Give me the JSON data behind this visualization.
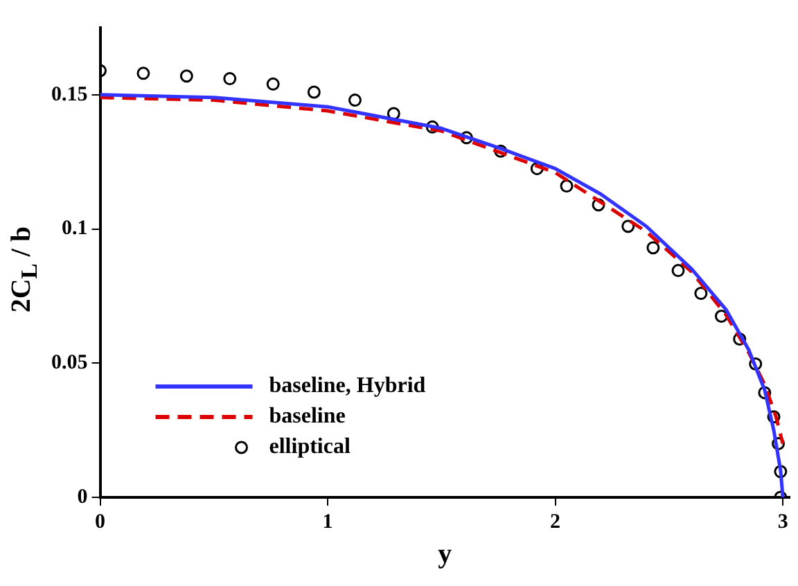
{
  "chart_data": {
    "type": "line",
    "xlabel": "y",
    "ylabel": "2C$_{L}$ / b",
    "xlim": [
      0,
      3.03
    ],
    "ylim": [
      0,
      0.175
    ],
    "xticks": [
      0,
      1,
      2,
      3
    ],
    "yticks": [
      0,
      0.05,
      0.1,
      0.15
    ],
    "grid": false,
    "legend": "bottom left",
    "series": [
      {
        "name": "baseline, Hybrid",
        "color": "#3333ff",
        "line_style": "solid",
        "marker": "none",
        "x": [
          0,
          0.5,
          1.0,
          1.5,
          1.76,
          2.0,
          2.2,
          2.4,
          2.6,
          2.75,
          2.85,
          2.92,
          2.96,
          2.99,
          3.0
        ],
        "values": [
          0.15,
          0.149,
          0.1455,
          0.1375,
          0.13,
          0.1225,
          0.113,
          0.101,
          0.085,
          0.07,
          0.055,
          0.04,
          0.025,
          0.01,
          0
        ]
      },
      {
        "name": "baseline",
        "color": "#dd0000",
        "line_style": "dashed",
        "marker": "none",
        "x": [
          0,
          0.5,
          1.0,
          1.5,
          2.0,
          2.4,
          2.6,
          2.75,
          2.85,
          2.92,
          2.97,
          3.0
        ],
        "values": [
          0.149,
          0.148,
          0.144,
          0.1365,
          0.121,
          0.099,
          0.084,
          0.068,
          0.054,
          0.042,
          0.03,
          0.02
        ]
      },
      {
        "name": "elliptical",
        "type": "scatter",
        "color": "#000000",
        "marker": "circle",
        "x": [
          0,
          0.19,
          0.38,
          0.57,
          0.76,
          0.94,
          1.12,
          1.29,
          1.46,
          1.61,
          1.76,
          1.92,
          2.05,
          2.19,
          2.32,
          2.43,
          2.54,
          2.64,
          2.73,
          2.81,
          2.88,
          2.92,
          2.96,
          2.98,
          2.99,
          2.99
        ],
        "values": [
          0.159,
          0.158,
          0.157,
          0.156,
          0.154,
          0.151,
          0.148,
          0.143,
          0.138,
          0.134,
          0.129,
          0.1225,
          0.116,
          0.109,
          0.101,
          0.093,
          0.0845,
          0.076,
          0.0675,
          0.059,
          0.0497,
          0.039,
          0.03,
          0.02,
          0.0096,
          0
        ]
      }
    ]
  }
}
